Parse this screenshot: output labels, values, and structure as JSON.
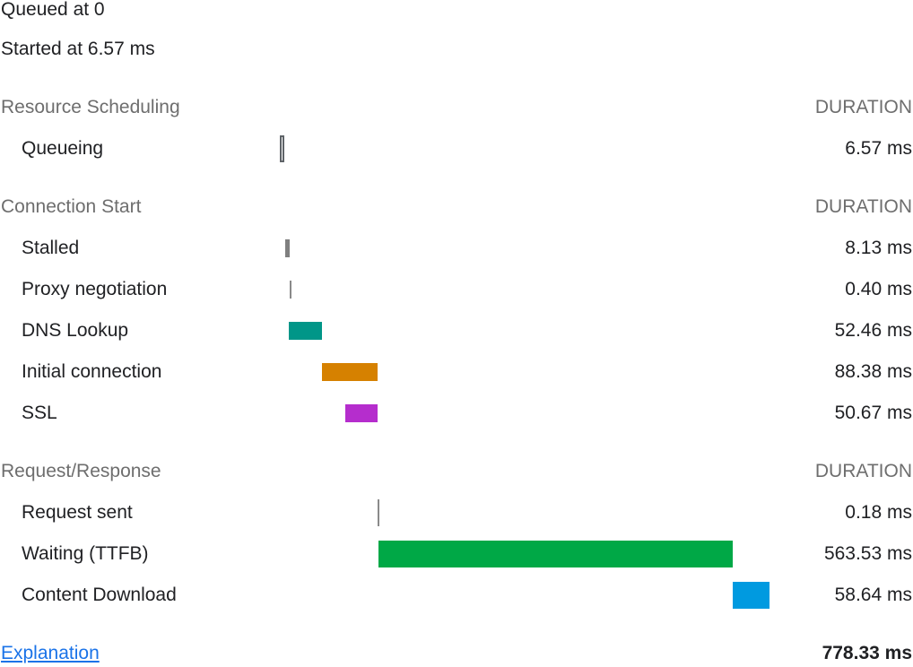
{
  "summary": {
    "queued": "Queued at 0",
    "started": "Started at 6.57 ms"
  },
  "timeline_total_ms": 778.33,
  "sections": [
    {
      "title": "Resource Scheduling",
      "duration_label": "DURATION",
      "rows": [
        {
          "name": "Queueing",
          "duration": "6.57 ms",
          "start_ms": 0,
          "ms": 6.57,
          "color": "#5f6368",
          "style": "outline"
        }
      ]
    },
    {
      "title": "Connection Start",
      "duration_label": "DURATION",
      "rows": [
        {
          "name": "Stalled",
          "duration": "8.13 ms",
          "start_ms": 6.57,
          "ms": 8.13,
          "color": "#7f7f7f",
          "style": "solid"
        },
        {
          "name": "Proxy negotiation",
          "duration": "0.40 ms",
          "start_ms": 14.7,
          "ms": 0.4,
          "color": "#8a8a8a",
          "style": "solid"
        },
        {
          "name": "DNS Lookup",
          "duration": "52.46 ms",
          "start_ms": 12.8,
          "ms": 52.46,
          "color": "#009688",
          "style": "solid"
        },
        {
          "name": "Initial connection",
          "duration": "88.38 ms",
          "start_ms": 65.3,
          "ms": 88.38,
          "color": "#d68100",
          "style": "solid"
        },
        {
          "name": "SSL",
          "duration": "50.67 ms",
          "start_ms": 103.0,
          "ms": 50.67,
          "color": "#b52dcd",
          "style": "solid"
        }
      ]
    },
    {
      "title": "Request/Response",
      "duration_label": "DURATION",
      "rows": [
        {
          "name": "Request sent",
          "duration": "0.18 ms",
          "start_ms": 154.5,
          "ms": 0.18,
          "color": "#8a8a8a",
          "style": "solid"
        },
        {
          "name": "Waiting (TTFB)",
          "duration": "563.53 ms",
          "start_ms": 155.1,
          "ms": 563.53,
          "color": "#00a846",
          "style": "solid"
        },
        {
          "name": "Content Download",
          "duration": "58.64 ms",
          "start_ms": 718.7,
          "ms": 58.64,
          "color": "#009ae0",
          "style": "solid"
        }
      ]
    }
  ],
  "footer": {
    "explanation_link": "Explanation",
    "total": "778.33 ms"
  }
}
